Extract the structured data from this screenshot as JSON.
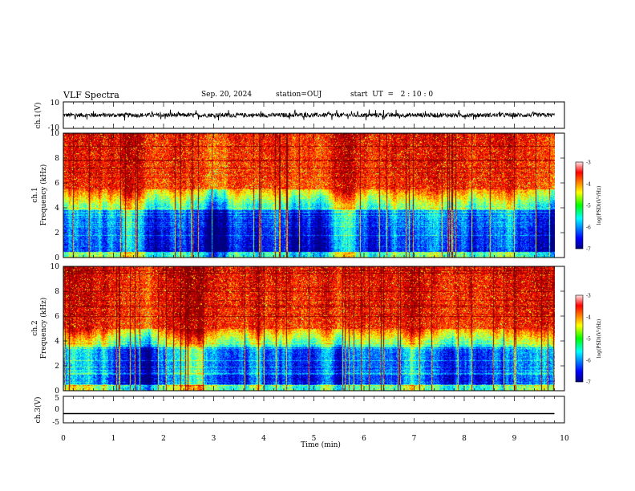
{
  "header": {
    "title": "VLF Spectra",
    "date": "Sep. 20, 2024",
    "station": "station=OUJ",
    "start": "start  UT  =   2 : 10 : 0"
  },
  "chart_data": [
    {
      "type": "line",
      "panel": "ch1-waveform",
      "ylabel": "ch.1(V)",
      "ylim": [
        -10,
        10
      ],
      "yticks": [
        "10",
        "-10"
      ],
      "xlim": [
        0,
        10
      ],
      "x_extent_min": [
        0,
        9.8
      ],
      "series": [
        {
          "values_range": [
            -3,
            3
          ]
        }
      ]
    },
    {
      "type": "heatmap",
      "panel": "ch1-spectrogram",
      "ylabel_channel": "ch.1",
      "ylabel": "Frequency (kHz)",
      "ylim": [
        0,
        10
      ],
      "yticks": [
        "0",
        "2",
        "4",
        "6",
        "8",
        "10"
      ],
      "xlim": [
        0,
        10
      ],
      "x_extent_min": [
        0,
        9.8
      ],
      "colorbar": {
        "label": "log(PSD)(V²/Hz)",
        "range": [
          -7,
          -3
        ],
        "ticks": [
          "-3",
          "-4",
          "-5",
          "-6",
          "-7"
        ],
        "colormap": "jet"
      },
      "profile_kHz": {
        "red_above": 5.5,
        "green_band": [
          3.8,
          5.5
        ],
        "blue_below": 3.5
      }
    },
    {
      "type": "heatmap",
      "panel": "ch2-spectrogram",
      "ylabel_channel": "ch.2",
      "ylabel": "Frequency (kHz)",
      "ylim": [
        0,
        10
      ],
      "yticks": [
        "0",
        "2",
        "4",
        "6",
        "8",
        "10"
      ],
      "xlim": [
        0,
        10
      ],
      "x_extent_min": [
        0,
        9.8
      ],
      "colorbar": {
        "label": "log(PSD)(V²/Hz)",
        "range": [
          -7,
          -3
        ],
        "ticks": [
          "-3",
          "-4",
          "-5",
          "-6",
          "-7"
        ],
        "colormap": "jet"
      },
      "profile_kHz": {
        "red_above": 5.0,
        "green_band": [
          3.5,
          5.0
        ],
        "blue_below": 3.5
      }
    },
    {
      "type": "line",
      "panel": "ch3-waveform",
      "ylabel": "ch.3(V)",
      "ylim": [
        -5,
        5
      ],
      "yticks": [
        "5",
        "0",
        "-5"
      ],
      "xlim": [
        0,
        10
      ],
      "x_extent_min": [
        0,
        9.8
      ],
      "series": [
        {
          "values": [
            -1.5,
            -1.5
          ]
        }
      ]
    }
  ],
  "xaxis": {
    "label": "Time (min)",
    "ticks": [
      "0",
      "1",
      "2",
      "3",
      "4",
      "5",
      "6",
      "7",
      "8",
      "9",
      "10"
    ]
  }
}
